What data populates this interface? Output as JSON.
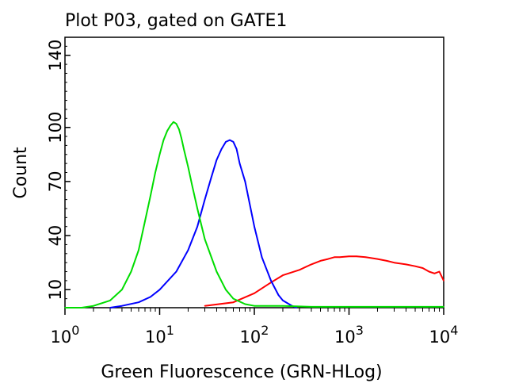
{
  "chart_data": {
    "type": "line",
    "title": "Plot P03, gated on GATE1",
    "xlabel": "Green Fluorescence (GRN-HLog)",
    "ylabel": "Count",
    "x_scale": "log",
    "xlim": [
      1,
      10000
    ],
    "ylim": [
      0,
      150
    ],
    "x_ticks": [
      {
        "value": 1,
        "base": "10",
        "exp": "0"
      },
      {
        "value": 10,
        "base": "10",
        "exp": "1"
      },
      {
        "value": 100,
        "base": "10",
        "exp": "2"
      },
      {
        "value": 1000,
        "base": "10",
        "exp": "3"
      },
      {
        "value": 10000,
        "base": "10",
        "exp": "4"
      }
    ],
    "y_ticks": [
      {
        "value": 10,
        "label": "10"
      },
      {
        "value": 40,
        "label": "40"
      },
      {
        "value": 70,
        "label": "70"
      },
      {
        "value": 100,
        "label": "100"
      },
      {
        "value": 140,
        "label": "140"
      }
    ],
    "grid": false,
    "legend": "none",
    "series": [
      {
        "color": "#ff0000",
        "x": [
          30,
          60,
          100,
          150,
          200,
          300,
          400,
          500,
          600,
          700,
          800,
          1000,
          1200,
          1500,
          2000,
          2500,
          3000,
          4000,
          5000,
          6000,
          7000,
          8000,
          9000,
          10000
        ],
        "y": [
          1,
          3,
          8,
          14,
          18,
          21,
          24,
          26,
          27,
          28,
          28,
          28.5,
          28.5,
          28,
          27,
          26,
          25,
          24,
          23,
          22,
          20,
          19,
          20,
          15
        ]
      },
      {
        "color": "#0000ff",
        "x": [
          3,
          4,
          6,
          8,
          10,
          15,
          20,
          25,
          30,
          35,
          40,
          45,
          50,
          55,
          60,
          65,
          70,
          80,
          100,
          120,
          150,
          180,
          200,
          250,
          280
        ],
        "y": [
          0,
          1,
          3,
          6,
          10,
          20,
          32,
          45,
          60,
          72,
          82,
          88,
          92,
          93,
          92,
          88,
          80,
          70,
          45,
          28,
          15,
          7,
          4,
          1,
          0
        ]
      },
      {
        "color": "#00dd00",
        "x": [
          1,
          1.5,
          2,
          3,
          4,
          5,
          6,
          7,
          8,
          9,
          10,
          11,
          12,
          13,
          14,
          15,
          16,
          17,
          18,
          20,
          22,
          25,
          30,
          40,
          50,
          60,
          80,
          100,
          200,
          400,
          1000,
          10000
        ],
        "y": [
          0,
          0,
          1,
          4,
          10,
          20,
          32,
          48,
          62,
          75,
          85,
          93,
          98,
          101,
          103,
          102,
          99,
          94,
          88,
          78,
          68,
          55,
          38,
          20,
          10,
          5,
          2,
          1,
          1,
          0.5,
          0.5,
          0.5
        ]
      }
    ]
  }
}
